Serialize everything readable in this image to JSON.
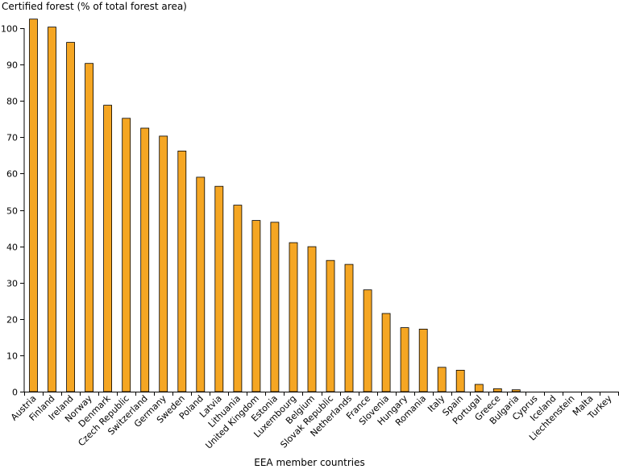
{
  "chart_data": {
    "type": "bar",
    "ylabel": "Certified forest (% of total forest area)",
    "xlabel": "EEA member countries",
    "ylim": [
      0,
      100
    ],
    "yticks": [
      0,
      10,
      20,
      30,
      40,
      50,
      60,
      70,
      80,
      90,
      100
    ],
    "grid": false,
    "bar_color": "#F5A623",
    "bar_edge_color": "#000000",
    "categories": [
      "Austria",
      "Finland",
      "Ireland",
      "Norway",
      "Denmark",
      "Czech Republic",
      "Switzerland",
      "Germany",
      "Sweden",
      "Poland",
      "Latvia",
      "Lithuania",
      "United Kingdom",
      "Estonia",
      "Luxembourg",
      "Belgium",
      "Slovak Republic",
      "Netherlands",
      "France",
      "Slovenia",
      "Hungary",
      "Romania",
      "Italy",
      "Spain",
      "Portugal",
      "Greece",
      "Bulgaria",
      "Cyprus",
      "Iceland",
      "Liechtenstein",
      "Malta",
      "Turkey"
    ],
    "values": [
      102.5,
      100.3,
      96.1,
      90.3,
      78.8,
      75.2,
      72.5,
      70.3,
      66.2,
      59.0,
      56.5,
      51.3,
      47.1,
      46.6,
      41.0,
      39.9,
      36.1,
      35.0,
      28.0,
      21.5,
      17.6,
      17.2,
      6.7,
      5.9,
      2.0,
      0.8,
      0.5,
      0,
      0,
      0,
      0,
      0
    ]
  }
}
